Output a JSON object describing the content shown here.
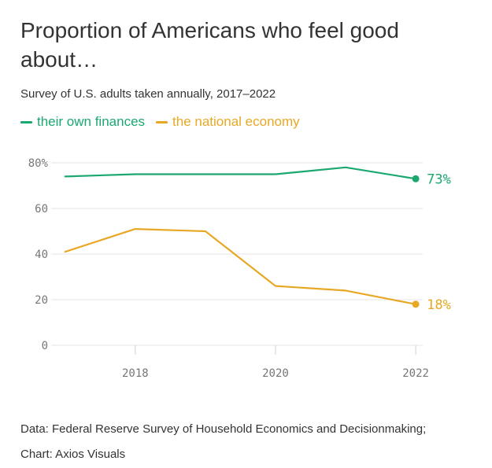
{
  "header": {
    "title": "Proportion of Americans who feel good about…",
    "subtitle": "Survey of U.S. adults taken annually, 2017–2022"
  },
  "legend": [
    {
      "label": "their own finances",
      "color": "#1ba870"
    },
    {
      "label": "the national economy",
      "color": "#e8a825"
    }
  ],
  "chart_data": {
    "type": "line",
    "title": "Proportion of Americans who feel good about…",
    "subtitle": "Survey of U.S. adults taken annually, 2017–2022",
    "xlabel": "",
    "ylabel": "",
    "x": [
      2017,
      2018,
      2019,
      2020,
      2021,
      2022
    ],
    "xlim": [
      2016.8,
      2022.1
    ],
    "ylim": [
      0,
      80
    ],
    "xticks": [
      2018,
      2020,
      2022
    ],
    "xtick_labels": [
      "2018",
      "2020",
      "2022"
    ],
    "yticks": [
      0,
      20,
      40,
      60,
      80
    ],
    "ytick_labels": [
      "0",
      "20",
      "40",
      "60",
      "80%"
    ],
    "grid": "horizontal",
    "series": [
      {
        "name": "their own finances",
        "color": "#1ba870",
        "values": [
          74,
          75,
          75,
          75,
          78,
          73
        ],
        "end_label": "73%"
      },
      {
        "name": "the national economy",
        "color": "#e8a825",
        "values": [
          41,
          51,
          50,
          26,
          24,
          18
        ],
        "end_label": "18%"
      }
    ]
  },
  "footer": {
    "source": "Data: Federal Reserve Survey of Household Economics and Decisionmaking;",
    "credit": "Chart: Axios Visuals"
  }
}
